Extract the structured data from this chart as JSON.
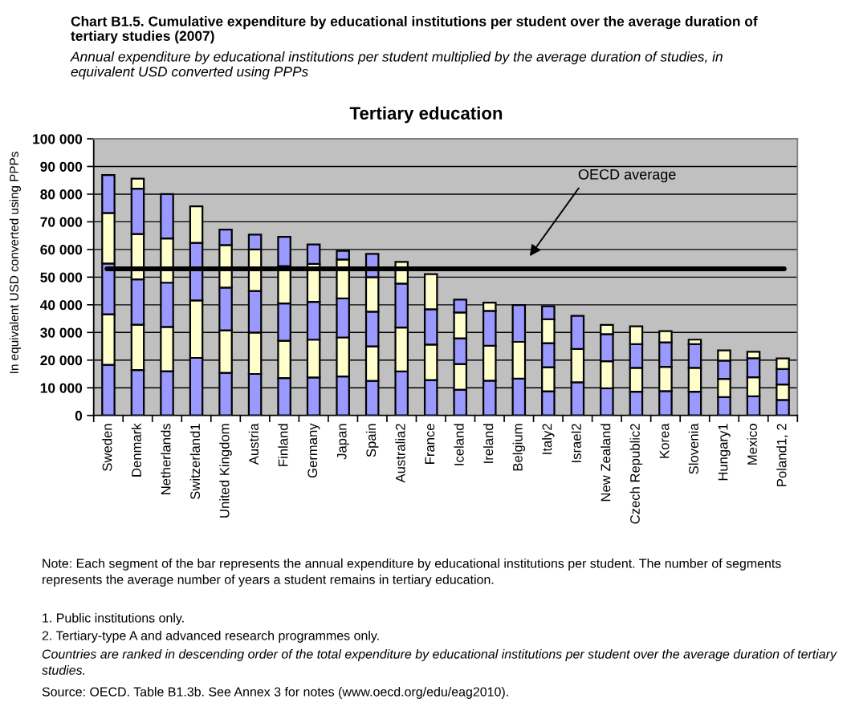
{
  "chart_data": {
    "type": "bar",
    "stacked": true,
    "title": "Chart B1.5. Cumulative expenditure by educational institutions per student over the average duration of tertiary studies (2007)",
    "subtitle": "Annual expenditure by educational institutions per student multiplied by the average duration of studies, in equivalent USD converted using PPPs",
    "ylabel": "In equivalent USD converted using PPPs",
    "categories": [
      "Sweden",
      "Denmark",
      "Netherlands",
      "Switzerland1",
      "United Kingdom",
      "Austria",
      "Finland",
      "Germany",
      "Japan",
      "Spain",
      "Australia2",
      "France",
      "Iceland",
      "Ireland",
      "Belgium",
      "Italy2",
      "Israel2",
      "New Zealand",
      "Czech Republic2",
      "Korea",
      "Slovenia",
      "Hungary1",
      "Mexico",
      "Poland1, 2"
    ],
    "series": [
      {
        "color": "#9999ff",
        "values": [
          18300,
          16400,
          16000,
          20800,
          15400,
          15000,
          13500,
          13700,
          14100,
          12500,
          15900,
          12800,
          9300,
          12600,
          13300,
          8700,
          12000,
          9800,
          8600,
          8800,
          8600,
          6600,
          6900,
          5600
        ]
      },
      {
        "color": "#ffffcc",
        "values": [
          18300,
          16400,
          16000,
          20800,
          15400,
          15000,
          13500,
          13700,
          14100,
          12500,
          15900,
          12800,
          9300,
          12600,
          13300,
          8700,
          12000,
          9800,
          8600,
          8800,
          8600,
          6600,
          6900,
          5600
        ]
      },
      {
        "color": "#9999ff",
        "values": [
          18300,
          16400,
          16000,
          20800,
          15400,
          15000,
          13500,
          13700,
          14100,
          12500,
          15900,
          12800,
          9300,
          12600,
          13300,
          8700,
          12000,
          9800,
          8600,
          8800,
          8600,
          6600,
          6900,
          5600
        ]
      },
      {
        "color": "#ffffcc",
        "values": [
          18300,
          16400,
          16000,
          13200,
          15400,
          15000,
          13500,
          13700,
          14100,
          12500,
          7800,
          12700,
          9300,
          3000,
          null,
          8700,
          null,
          3300,
          6400,
          4100,
          1600,
          3700,
          2300,
          3800
        ]
      },
      {
        "color": "#9999ff",
        "values": [
          13700,
          16400,
          16000,
          null,
          5600,
          5400,
          10600,
          7000,
          3100,
          8400,
          null,
          null,
          4700,
          null,
          null,
          4700,
          null,
          null,
          null,
          null,
          null,
          null,
          null,
          null
        ]
      },
      {
        "color": "#ffffcc",
        "values": [
          null,
          3600,
          null,
          null,
          null,
          null,
          null,
          null,
          null,
          null,
          null,
          null,
          null,
          null,
          null,
          null,
          null,
          null,
          null,
          null,
          null,
          null,
          null,
          null
        ]
      }
    ],
    "ylim": [
      0,
      100000
    ],
    "yticks": [
      0,
      {
        "value": 10000,
        "label": "10 000"
      },
      {
        "value": 20000,
        "label": "20 000"
      },
      {
        "value": 30000,
        "label": "30 000"
      },
      {
        "value": 40000,
        "label": "40 000"
      },
      {
        "value": 50000,
        "label": "50 000"
      },
      {
        "value": 60000,
        "label": "60 000"
      },
      {
        "value": 70000,
        "label": "70 000"
      },
      {
        "value": 80000,
        "label": "80 000"
      },
      {
        "value": 90000,
        "label": "90 000"
      },
      {
        "value": 100000,
        "label": "100 000"
      }
    ],
    "grid": "y",
    "ref_lines": [
      {
        "axis": "y",
        "value": 53000,
        "label": "OECD average",
        "color": "#000000"
      }
    ],
    "annotations": [
      "Tertiary education",
      "Note: Each segment of the bar represents the annual expenditure by educational institutions per student. The number of segments represents the average number of years a student remains in tertiary education.",
      "1. Public institutions only.",
      "2. Tertiary-type A and advanced research programmes only.",
      "Countries are ranked in descending order of the total expenditure by educational institutions per student over the average duration of tertiary studies.",
      "Source: OECD. Table B1.3b. See Annex 3 for notes (www.oecd.org/edu/eag2010)."
    ]
  }
}
